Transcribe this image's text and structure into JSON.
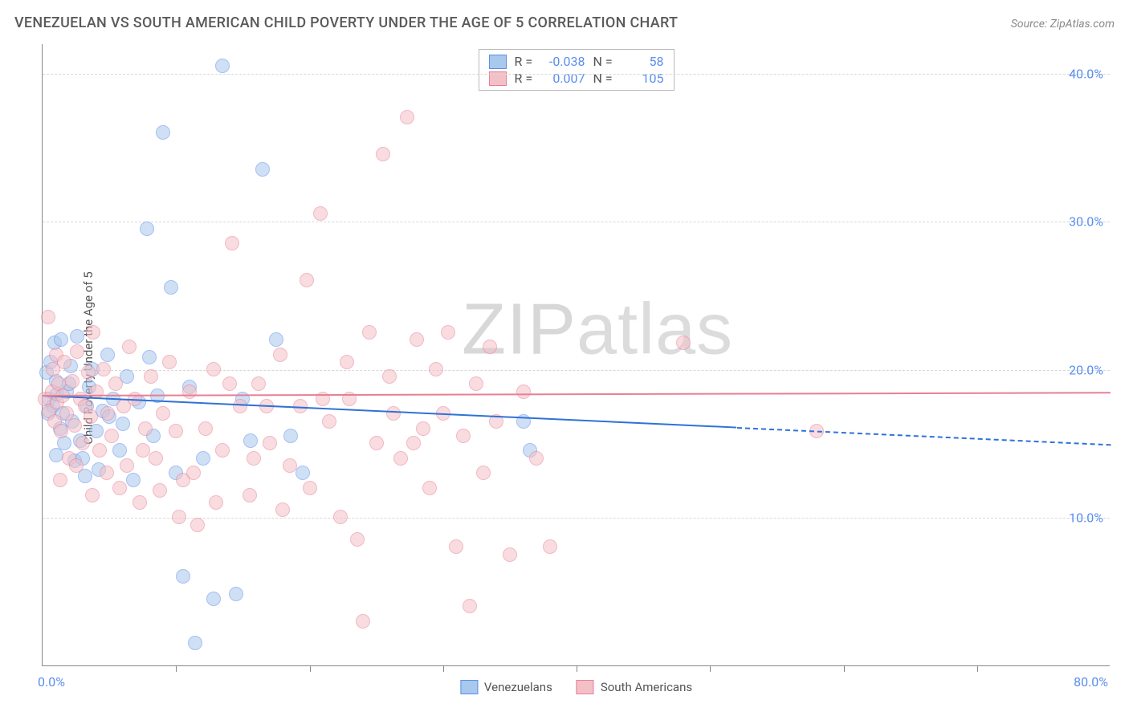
{
  "header": {
    "title": "VENEZUELAN VS SOUTH AMERICAN CHILD POVERTY UNDER THE AGE OF 5 CORRELATION CHART",
    "source_prefix": "Source: ",
    "source_name": "ZipAtlas.com"
  },
  "watermark": {
    "bold": "ZIP",
    "thin": "atlas"
  },
  "chart": {
    "type": "scatter",
    "ylabel": "Child Poverty Under the Age of 5",
    "xlim": [
      0,
      80
    ],
    "ylim": [
      0,
      42
    ],
    "xticks": [
      0,
      80
    ],
    "xtick_labels": [
      "0.0%",
      "80.0%"
    ],
    "xtick_minor": [
      10,
      20,
      30,
      40,
      50,
      60,
      70
    ],
    "yticks": [
      10,
      20,
      30,
      40
    ],
    "ytick_labels": [
      "10.0%",
      "20.0%",
      "30.0%",
      "40.0%"
    ],
    "background_color": "#ffffff",
    "grid_color": "#d8d8d8",
    "axis_color": "#888888",
    "tick_label_color": "#5b8def",
    "marker_radius": 9,
    "marker_opacity": 0.55,
    "series": [
      {
        "name": "Venezuelans",
        "fill": "#a8c8ec",
        "stroke": "#5b8def",
        "R": "-0.038",
        "N": "58",
        "trend": {
          "y_start": 18.3,
          "y_end": 15.0,
          "solid_until_x": 52,
          "color": "#2f72d6"
        },
        "points": [
          [
            0.3,
            19.8
          ],
          [
            0.5,
            18.0
          ],
          [
            0.6,
            20.5
          ],
          [
            0.8,
            17.5
          ],
          [
            0.9,
            21.8
          ],
          [
            1.0,
            19.2
          ],
          [
            1.1,
            18.3
          ],
          [
            1.3,
            16.0
          ],
          [
            1.4,
            22.0
          ],
          [
            1.5,
            17.0
          ],
          [
            1.6,
            15.0
          ],
          [
            1.8,
            18.5
          ],
          [
            2.0,
            19.0
          ],
          [
            2.2,
            16.5
          ],
          [
            2.4,
            13.8
          ],
          [
            2.6,
            22.2
          ],
          [
            2.8,
            15.2
          ],
          [
            3.0,
            14.0
          ],
          [
            3.3,
            17.5
          ],
          [
            3.5,
            18.8
          ],
          [
            3.7,
            20.0
          ],
          [
            4.0,
            15.8
          ],
          [
            4.2,
            13.2
          ],
          [
            4.5,
            17.2
          ],
          [
            4.9,
            21.0
          ],
          [
            5.3,
            18.0
          ],
          [
            5.8,
            14.5
          ],
          [
            6.0,
            16.3
          ],
          [
            6.3,
            19.5
          ],
          [
            6.8,
            12.5
          ],
          [
            7.2,
            17.8
          ],
          [
            7.8,
            29.5
          ],
          [
            8.3,
            15.5
          ],
          [
            8.6,
            18.2
          ],
          [
            9.0,
            36.0
          ],
          [
            9.6,
            25.5
          ],
          [
            10.0,
            13.0
          ],
          [
            10.5,
            6.0
          ],
          [
            11.0,
            18.8
          ],
          [
            11.4,
            1.5
          ],
          [
            12.0,
            14.0
          ],
          [
            12.8,
            4.5
          ],
          [
            13.5,
            40.5
          ],
          [
            14.5,
            4.8
          ],
          [
            15.0,
            18.0
          ],
          [
            15.6,
            15.2
          ],
          [
            16.5,
            33.5
          ],
          [
            17.5,
            22.0
          ],
          [
            18.6,
            15.5
          ],
          [
            19.5,
            13.0
          ],
          [
            36.0,
            16.5
          ],
          [
            36.5,
            14.5
          ],
          [
            1.0,
            14.2
          ],
          [
            2.1,
            20.2
          ],
          [
            3.2,
            12.8
          ],
          [
            5.0,
            16.8
          ],
          [
            8.0,
            20.8
          ],
          [
            0.4,
            17.0
          ]
        ]
      },
      {
        "name": "South Americans",
        "fill": "#f4c0c8",
        "stroke": "#e87f94",
        "R": "0.007",
        "N": "105",
        "trend": {
          "y_start": 18.3,
          "y_end": 18.5,
          "solid_until_x": 80,
          "color": "#e87f94"
        },
        "points": [
          [
            0.2,
            18.0
          ],
          [
            0.4,
            23.5
          ],
          [
            0.5,
            17.2
          ],
          [
            0.7,
            18.5
          ],
          [
            0.8,
            20.0
          ],
          [
            0.9,
            16.5
          ],
          [
            1.0,
            21.0
          ],
          [
            1.1,
            17.8
          ],
          [
            1.2,
            19.0
          ],
          [
            1.4,
            15.8
          ],
          [
            1.5,
            18.2
          ],
          [
            1.6,
            20.5
          ],
          [
            1.8,
            17.0
          ],
          [
            2.0,
            14.0
          ],
          [
            2.2,
            19.2
          ],
          [
            2.4,
            16.2
          ],
          [
            2.6,
            21.2
          ],
          [
            2.8,
            18.0
          ],
          [
            3.0,
            15.0
          ],
          [
            3.2,
            17.5
          ],
          [
            3.4,
            19.8
          ],
          [
            3.6,
            16.8
          ],
          [
            3.8,
            22.5
          ],
          [
            4.0,
            18.5
          ],
          [
            4.3,
            14.5
          ],
          [
            4.6,
            20.0
          ],
          [
            4.9,
            17.0
          ],
          [
            5.2,
            15.5
          ],
          [
            5.5,
            19.0
          ],
          [
            5.8,
            12.0
          ],
          [
            6.1,
            17.5
          ],
          [
            6.5,
            21.5
          ],
          [
            6.9,
            18.0
          ],
          [
            7.3,
            11.0
          ],
          [
            7.7,
            16.0
          ],
          [
            8.1,
            19.5
          ],
          [
            8.5,
            14.0
          ],
          [
            9.0,
            17.0
          ],
          [
            9.5,
            20.5
          ],
          [
            10.0,
            15.8
          ],
          [
            10.5,
            12.5
          ],
          [
            11.0,
            18.5
          ],
          [
            11.6,
            9.5
          ],
          [
            12.2,
            16.0
          ],
          [
            12.8,
            20.0
          ],
          [
            13.5,
            14.5
          ],
          [
            14.2,
            28.5
          ],
          [
            14.8,
            17.5
          ],
          [
            15.5,
            11.5
          ],
          [
            16.2,
            19.0
          ],
          [
            17.0,
            15.0
          ],
          [
            17.8,
            21.0
          ],
          [
            18.5,
            13.5
          ],
          [
            19.3,
            17.5
          ],
          [
            20.0,
            12.0
          ],
          [
            20.8,
            30.5
          ],
          [
            21.5,
            16.5
          ],
          [
            22.3,
            10.0
          ],
          [
            23.0,
            18.0
          ],
          [
            23.6,
            8.5
          ],
          [
            24.5,
            22.5
          ],
          [
            25.0,
            15.0
          ],
          [
            25.5,
            34.5
          ],
          [
            26.0,
            19.5
          ],
          [
            26.8,
            14.0
          ],
          [
            27.3,
            37.0
          ],
          [
            28.0,
            22.0
          ],
          [
            28.5,
            16.0
          ],
          [
            29.0,
            12.0
          ],
          [
            29.5,
            20.0
          ],
          [
            30.0,
            17.0
          ],
          [
            30.4,
            22.5
          ],
          [
            31.0,
            8.0
          ],
          [
            31.5,
            15.5
          ],
          [
            32.0,
            4.0
          ],
          [
            32.5,
            19.0
          ],
          [
            33.0,
            13.0
          ],
          [
            33.5,
            21.5
          ],
          [
            34.0,
            16.5
          ],
          [
            35.0,
            7.5
          ],
          [
            36.0,
            18.5
          ],
          [
            37.0,
            14.0
          ],
          [
            38.0,
            8.0
          ],
          [
            48.0,
            21.8
          ],
          [
            58.0,
            15.8
          ],
          [
            1.3,
            12.5
          ],
          [
            2.5,
            13.5
          ],
          [
            3.7,
            11.5
          ],
          [
            4.8,
            13.0
          ],
          [
            6.3,
            13.5
          ],
          [
            7.5,
            14.5
          ],
          [
            8.8,
            11.8
          ],
          [
            10.2,
            10.0
          ],
          [
            11.3,
            13.0
          ],
          [
            13.0,
            11.0
          ],
          [
            14.0,
            19.0
          ],
          [
            15.8,
            14.0
          ],
          [
            16.8,
            17.5
          ],
          [
            18.0,
            10.5
          ],
          [
            19.8,
            26.0
          ],
          [
            21.0,
            18.0
          ],
          [
            22.8,
            20.5
          ],
          [
            24.0,
            3.0
          ],
          [
            26.3,
            17.0
          ],
          [
            27.8,
            15.0
          ]
        ]
      }
    ]
  },
  "legend": {
    "items": [
      {
        "label": "Venezuelans",
        "fill": "#a8c8ec",
        "stroke": "#5b8def"
      },
      {
        "label": "South Americans",
        "fill": "#f4c0c8",
        "stroke": "#e87f94"
      }
    ]
  }
}
